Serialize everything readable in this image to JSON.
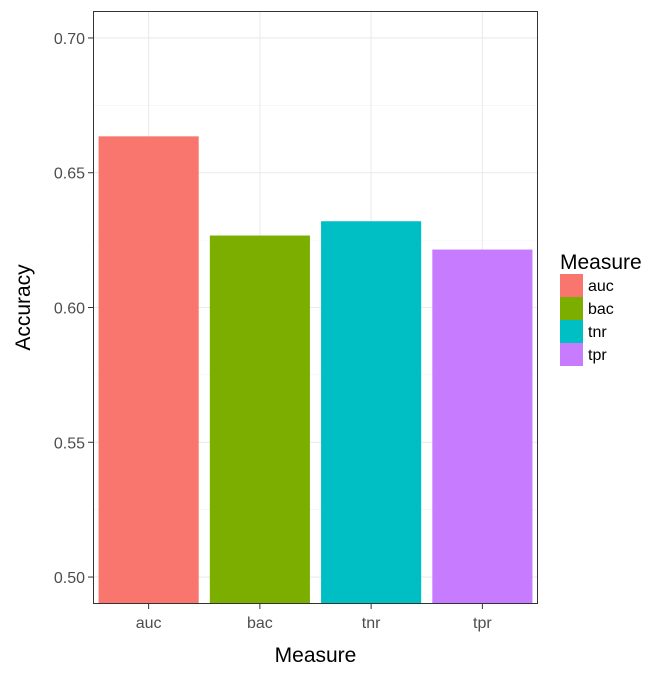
{
  "chart_data": {
    "type": "bar",
    "title": "",
    "xlabel": "Measure",
    "ylabel": "Accuracy",
    "categories": [
      "auc",
      "bac",
      "tnr",
      "tpr"
    ],
    "values": [
      0.6635,
      0.6267,
      0.632,
      0.6215
    ],
    "colors": [
      "#F8766D",
      "#7CAE00",
      "#00BFC4",
      "#C77CFF"
    ],
    "ylim": [
      0.49,
      0.71
    ],
    "yticks": [
      "0.50",
      "0.55",
      "0.60",
      "0.65",
      "0.70"
    ],
    "grid": true,
    "legend": {
      "title": "Measure",
      "position": "right",
      "entries": [
        "auc",
        "bac",
        "tnr",
        "tpr"
      ]
    }
  }
}
